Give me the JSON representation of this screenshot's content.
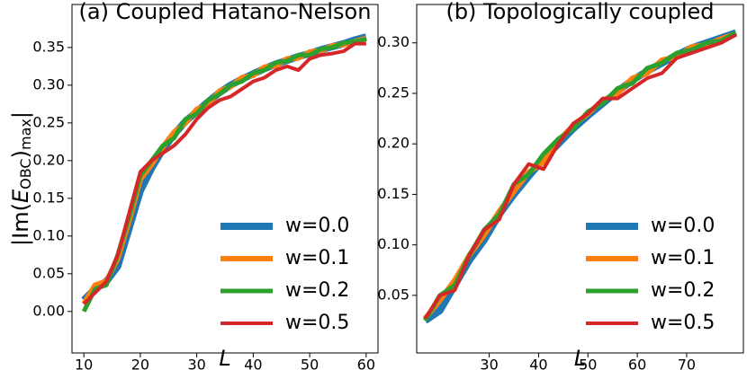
{
  "chart_data": [
    {
      "type": "line",
      "title": "(a) Coupled Hatano-Nelson",
      "xlabel": "L",
      "ylabel": [
        "|Im(",
        "E",
        "OBC",
        ")",
        "max",
        "|"
      ],
      "x": [
        10,
        12,
        14,
        16,
        18,
        20,
        22,
        24,
        26,
        28,
        30,
        32,
        34,
        36,
        38,
        40,
        42,
        44,
        46,
        48,
        50,
        52,
        54,
        56,
        58,
        60
      ],
      "series": [
        {
          "name": "w=0.0",
          "color": "#1f77b4",
          "values": [
            0.015,
            0.03,
            0.04,
            0.06,
            0.11,
            0.16,
            0.19,
            0.215,
            0.235,
            0.252,
            0.265,
            0.278,
            0.29,
            0.3,
            0.308,
            0.315,
            0.322,
            0.328,
            0.333,
            0.338,
            0.342,
            0.347,
            0.351,
            0.355,
            0.36,
            0.364
          ]
        },
        {
          "name": "w=0.1",
          "color": "#ff7f0e",
          "values": [
            0.01,
            0.035,
            0.04,
            0.07,
            0.12,
            0.175,
            0.195,
            0.218,
            0.238,
            0.25,
            0.268,
            0.275,
            0.292,
            0.298,
            0.31,
            0.313,
            0.324,
            0.326,
            0.335,
            0.336,
            0.344,
            0.346,
            0.352,
            0.354,
            0.358,
            0.362
          ]
        },
        {
          "name": "w=0.2",
          "color": "#2ca02c",
          "values": [
            0.0,
            0.03,
            0.035,
            0.075,
            0.125,
            0.18,
            0.2,
            0.22,
            0.23,
            0.255,
            0.262,
            0.28,
            0.288,
            0.3,
            0.305,
            0.316,
            0.32,
            0.33,
            0.332,
            0.34,
            0.34,
            0.348,
            0.35,
            0.356,
            0.358,
            0.361
          ]
        },
        {
          "name": "w=0.5",
          "color": "#d62728",
          "values": [
            0.01,
            0.025,
            0.04,
            0.075,
            0.13,
            0.185,
            0.2,
            0.21,
            0.22,
            0.235,
            0.255,
            0.27,
            0.28,
            0.285,
            0.295,
            0.305,
            0.31,
            0.32,
            0.325,
            0.32,
            0.335,
            0.34,
            0.342,
            0.345,
            0.355,
            0.355
          ]
        }
      ],
      "xlim": [
        7.9,
        62.1
      ],
      "xticks": [
        10,
        20,
        30,
        40,
        50,
        60
      ],
      "ylim": [
        -0.055,
        0.407
      ],
      "yticks": [
        {
          "value": 0,
          "label": "0.00"
        },
        0.05,
        {
          "value": 0.1,
          "label": "0.10"
        },
        0.15,
        {
          "value": 0.2,
          "label": "0.20"
        },
        0.25,
        {
          "value": 0.3,
          "label": "0.30"
        },
        0.35
      ],
      "legend": "lower right",
      "grid": false
    },
    {
      "type": "line",
      "title": "(b) Topologically coupled",
      "xlabel": "L",
      "x": [
        17,
        20,
        23,
        26,
        29,
        32,
        35,
        38,
        41,
        44,
        47,
        50,
        53,
        56,
        59,
        62,
        65,
        68,
        71,
        74,
        77,
        80
      ],
      "series": [
        {
          "name": "w=0.0",
          "color": "#1f77b4",
          "values": [
            0.025,
            0.035,
            0.06,
            0.085,
            0.105,
            0.13,
            0.15,
            0.168,
            0.185,
            0.2,
            0.215,
            0.228,
            0.24,
            0.252,
            0.263,
            0.272,
            0.28,
            0.288,
            0.295,
            0.3,
            0.305,
            0.31
          ]
        },
        {
          "name": "w=0.1",
          "color": "#ff7f0e",
          "values": [
            0.027,
            0.045,
            0.065,
            0.09,
            0.11,
            0.133,
            0.153,
            0.172,
            0.182,
            0.203,
            0.218,
            0.23,
            0.243,
            0.25,
            0.265,
            0.27,
            0.283,
            0.286,
            0.296,
            0.298,
            0.304,
            0.309
          ]
        },
        {
          "name": "w=0.2",
          "color": "#2ca02c",
          "values": [
            0.025,
            0.05,
            0.06,
            0.09,
            0.115,
            0.13,
            0.16,
            0.17,
            0.19,
            0.205,
            0.215,
            0.232,
            0.24,
            0.255,
            0.26,
            0.275,
            0.28,
            0.29,
            0.293,
            0.3,
            0.302,
            0.31
          ]
        },
        {
          "name": "w=0.5",
          "color": "#d62728",
          "values": [
            0.027,
            0.05,
            0.055,
            0.09,
            0.115,
            0.125,
            0.16,
            0.18,
            0.175,
            0.2,
            0.22,
            0.23,
            0.245,
            0.245,
            0.255,
            0.265,
            0.27,
            0.285,
            0.29,
            0.295,
            0.3,
            0.308
          ]
        }
      ],
      "xlim": [
        15.3,
        81.5
      ],
      "xticks": [
        30,
        40,
        50,
        60,
        70
      ],
      "ylim": [
        -0.007,
        0.338
      ],
      "yticks": [
        0.05,
        {
          "value": 0.1,
          "label": "0.10"
        },
        0.15,
        {
          "value": 0.2,
          "label": "0.20"
        },
        0.25,
        {
          "value": 0.3,
          "label": "0.30"
        }
      ],
      "legend": "lower right",
      "grid": false
    }
  ]
}
